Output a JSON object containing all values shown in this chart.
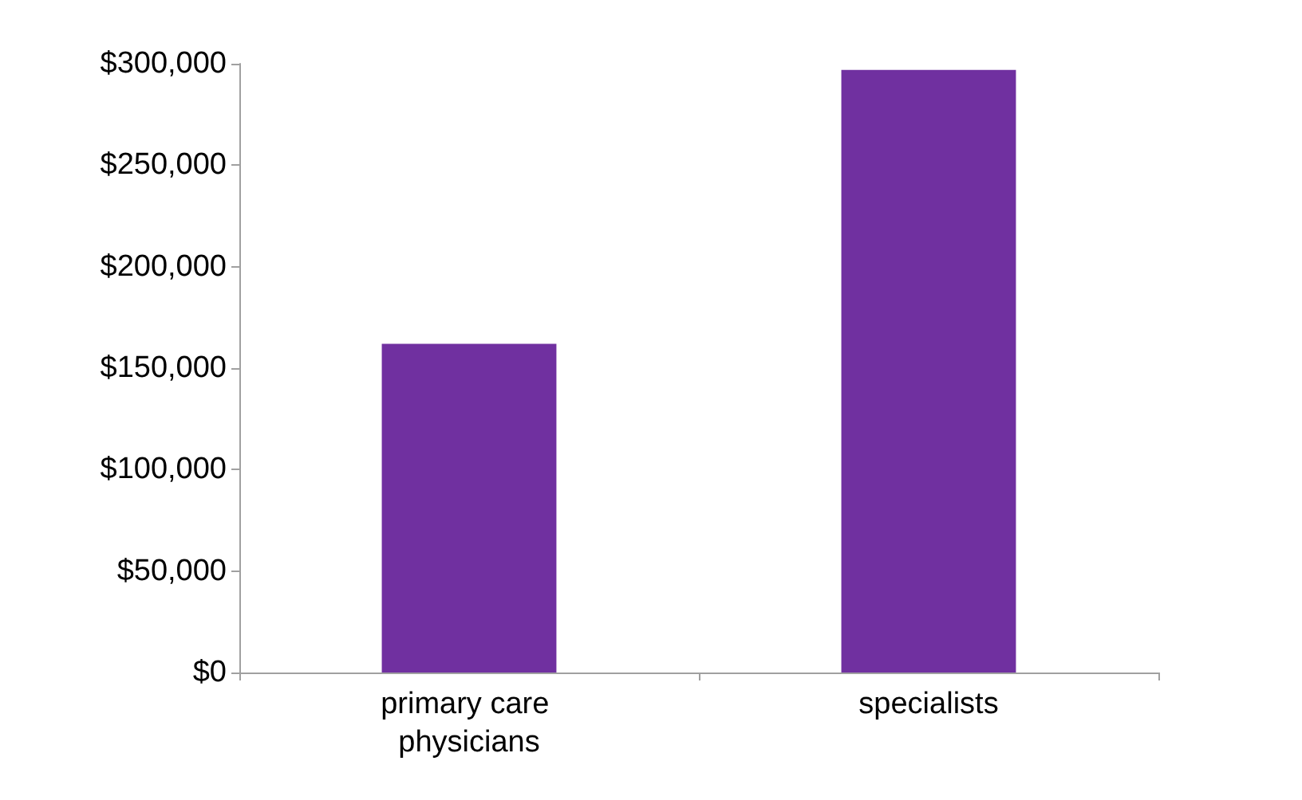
{
  "chart_data": {
    "type": "bar",
    "categories": [
      "primary care physicians",
      "specialists"
    ],
    "values": [
      162000,
      297000
    ],
    "color": "#7030a0",
    "ylim": [
      0,
      300000
    ],
    "yticks": [
      {
        "value": 0,
        "label": "$0"
      },
      {
        "value": 50000,
        "label": "$50,000"
      },
      {
        "value": 100000,
        "label": "$100,000"
      },
      {
        "value": 150000,
        "label": "$150,000"
      },
      {
        "value": 200000,
        "label": "$200,000"
      },
      {
        "value": 250000,
        "label": "$250,000"
      },
      {
        "value": 300000,
        "label": "$300,000"
      }
    ],
    "grid": false
  }
}
